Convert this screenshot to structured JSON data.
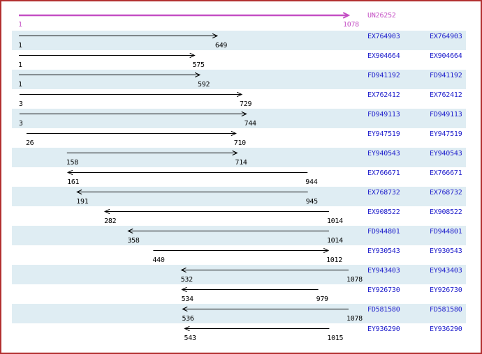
{
  "colors": {
    "border": "#b23030",
    "stripe": "#dfedf3",
    "reference": "#c44fc4",
    "accession": "#2020cc",
    "arrow": "#000000",
    "background": "#ffffff"
  },
  "chart_data": {
    "type": "bar",
    "subtype": "horizontal-range-alignment",
    "title": "",
    "xlabel": "",
    "ylabel": "",
    "axis": {
      "min": 1,
      "max": 1078
    },
    "grid": false,
    "legend": null,
    "reference": {
      "label": "UN26252",
      "start": 1,
      "end": 1078,
      "start_label": "1",
      "end_label": "1078",
      "strand": "+"
    },
    "label_columns": 2,
    "rows": [
      {
        "label": "EX764903",
        "start": 1,
        "end": 649,
        "strand": "+"
      },
      {
        "label": "EX904664",
        "start": 1,
        "end": 575,
        "strand": "+"
      },
      {
        "label": "FD941192",
        "start": 1,
        "end": 592,
        "strand": "+"
      },
      {
        "label": "EX762412",
        "start": 3,
        "end": 729,
        "strand": "+"
      },
      {
        "label": "FD949113",
        "start": 3,
        "end": 744,
        "strand": "+"
      },
      {
        "label": "EY947519",
        "start": 26,
        "end": 710,
        "strand": "+"
      },
      {
        "label": "EY940543",
        "start": 158,
        "end": 714,
        "strand": "+"
      },
      {
        "label": "EX766671",
        "start": 161,
        "end": 944,
        "strand": "-"
      },
      {
        "label": "EX768732",
        "start": 191,
        "end": 945,
        "strand": "-"
      },
      {
        "label": "EX908522",
        "start": 282,
        "end": 1014,
        "strand": "-"
      },
      {
        "label": "FD944801",
        "start": 358,
        "end": 1014,
        "strand": "-"
      },
      {
        "label": "EY930543",
        "start": 440,
        "end": 1012,
        "strand": "+"
      },
      {
        "label": "EY943403",
        "start": 532,
        "end": 1078,
        "strand": "-"
      },
      {
        "label": "EY926730",
        "start": 534,
        "end": 979,
        "strand": "-"
      },
      {
        "label": "FD581580",
        "start": 536,
        "end": 1078,
        "strand": "-"
      },
      {
        "label": "EY936290",
        "start": 543,
        "end": 1015,
        "strand": "-"
      }
    ]
  }
}
